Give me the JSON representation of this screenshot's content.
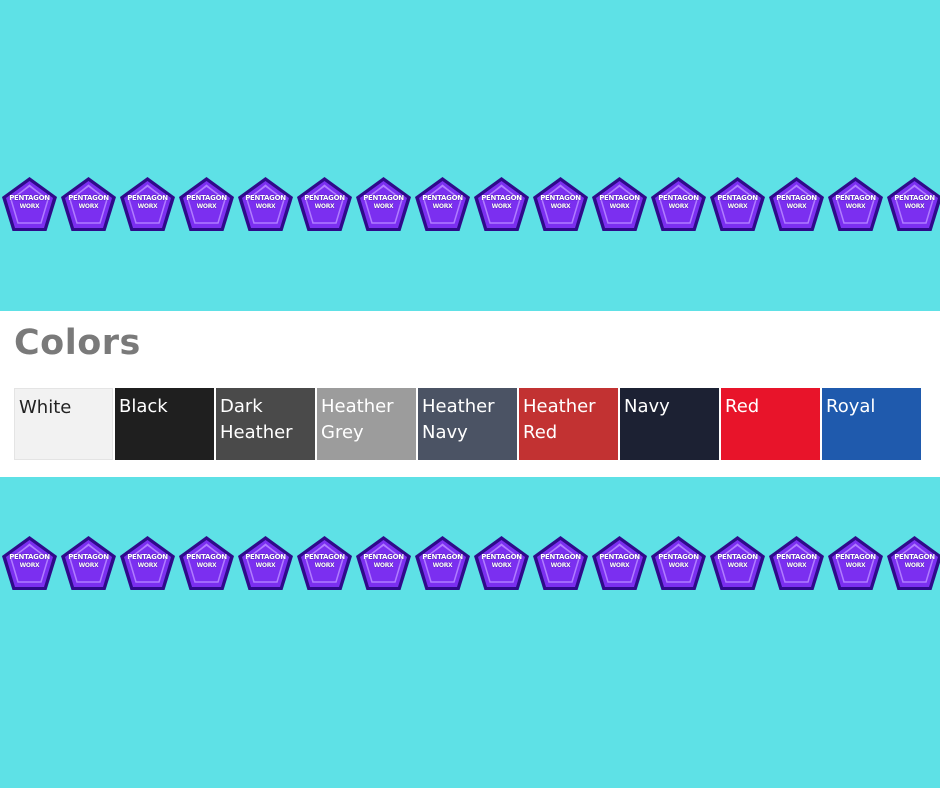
{
  "heading": "Colors",
  "brand": {
    "line1": "PENTAGON",
    "line2": "WORX"
  },
  "logo_colors": {
    "fill": "#7b2ff0",
    "edge": "#2f0a8a",
    "highlight": "#b07cff"
  },
  "colors": [
    {
      "label": "White",
      "swatch": "#f2f2f2",
      "light": true
    },
    {
      "label": "Black",
      "swatch": "#1f1f1f"
    },
    {
      "label": "Dark Heather",
      "swatch": "#4a4a4a"
    },
    {
      "label": "Heather Grey",
      "swatch": "#9c9c9c"
    },
    {
      "label": "Heather Navy",
      "swatch": "#4b5364"
    },
    {
      "label": "Heather Red",
      "swatch": "#c23232"
    },
    {
      "label": "Navy",
      "swatch": "#1c2133"
    },
    {
      "label": "Red",
      "swatch": "#e8142a"
    },
    {
      "label": "Royal",
      "swatch": "#1f5aad"
    }
  ]
}
